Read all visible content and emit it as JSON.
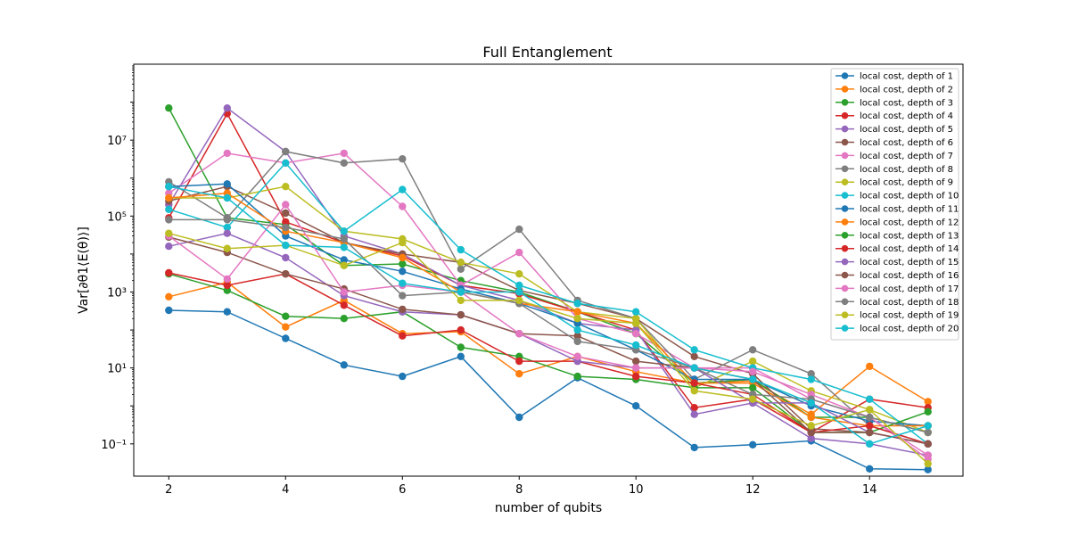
{
  "chart_data": {
    "type": "line",
    "title": "Full Entanglement",
    "xlabel": "number of qubits",
    "ylabel": "Var[∂θ1⟨E(θ)⟩]",
    "yscale": "log",
    "xlim": [
      1.4,
      15.6
    ],
    "ylim_log10": [
      -1.85,
      9.0
    ],
    "x_ticks": [
      2,
      4,
      6,
      8,
      10,
      12,
      14
    ],
    "y_ticks": [
      {
        "exp": -1,
        "label": "10⁻¹"
      },
      {
        "exp": 1,
        "label": "10¹"
      },
      {
        "exp": 3,
        "label": "10³"
      },
      {
        "exp": 5,
        "label": "10⁵"
      },
      {
        "exp": 7,
        "label": "10⁷"
      }
    ],
    "grid": false,
    "legend_position": "top-right",
    "x": [
      2,
      3,
      4,
      5,
      6,
      7,
      8,
      9,
      10,
      11,
      12,
      13,
      14,
      15
    ],
    "series": [
      {
        "name": "local cost, depth of 1",
        "color": "#1f77b4",
        "values": [
          330,
          300,
          60,
          12,
          6,
          20,
          0.5,
          5.5,
          1.0,
          0.08,
          0.095,
          0.12,
          0.022,
          0.021
        ]
      },
      {
        "name": "local cost, depth of 2",
        "color": "#ff7f0e",
        "values": [
          750,
          1800,
          120,
          600,
          80,
          90,
          7,
          20,
          8,
          4,
          4.5,
          0.6,
          11,
          1.3
        ]
      },
      {
        "name": "local cost, depth of 3",
        "color": "#2ca02c",
        "values": [
          70000000,
          90000,
          60000,
          5000,
          5500,
          2000,
          1000,
          300,
          80,
          4,
          5,
          0.5,
          0.5,
          0.2
        ]
      },
      {
        "name": "local cost, depth of 4",
        "color": "#d62728",
        "values": [
          90000,
          50000000,
          70000,
          20000,
          9000,
          1500,
          900,
          300,
          100,
          0.9,
          1.5,
          0.2,
          1.5,
          0.9
        ]
      },
      {
        "name": "local cost, depth of 5",
        "color": "#9467bd",
        "values": [
          200000,
          70000000,
          5000000,
          30000,
          10000,
          1500,
          600,
          150,
          100,
          0.6,
          1.2,
          0.14,
          0.1,
          0.05
        ]
      },
      {
        "name": "local cost, depth of 6",
        "color": "#8c564b",
        "values": [
          250000,
          600000,
          120000,
          20000,
          10000,
          6000,
          1100,
          500,
          200,
          20,
          7,
          0.25,
          0.2,
          0.1
        ]
      },
      {
        "name": "local cost, depth of 7",
        "color": "#e377c2",
        "values": [
          400000,
          4500000,
          2500000,
          4500000,
          180000,
          1500,
          11000,
          200,
          80,
          10,
          10,
          1.5,
          0.5,
          0.04
        ]
      },
      {
        "name": "local cost, depth of 8",
        "color": "#7f7f7f",
        "values": [
          800000,
          90000,
          5000000,
          2500000,
          3200000,
          4000,
          45000,
          600,
          200,
          5,
          30,
          7,
          0.3,
          0.1
        ]
      },
      {
        "name": "local cost, depth of 9",
        "color": "#bcbd22",
        "values": [
          300000,
          300000,
          600000,
          40000,
          25000,
          6000,
          3000,
          300,
          200,
          3,
          15,
          2.5,
          0.8,
          0.2
        ]
      },
      {
        "name": "local cost, depth of 10",
        "color": "#17becf",
        "values": [
          150000,
          50000,
          2500000,
          40000,
          500000,
          13000,
          1500,
          500,
          300,
          30,
          10,
          5,
          1.5,
          0.1
        ]
      },
      {
        "name": "local cost, depth of 11",
        "color": "#1f77b4",
        "values": [
          600000,
          700000,
          30000,
          7000,
          3500,
          1200,
          500,
          150,
          30,
          5,
          5,
          1,
          0.4,
          0.3
        ]
      },
      {
        "name": "local cost, depth of 12",
        "color": "#ff7f0e",
        "values": [
          300000,
          400000,
          40000,
          20000,
          8000,
          1000,
          500,
          300,
          150,
          4,
          4,
          0.5,
          0.3,
          0.3
        ]
      },
      {
        "name": "local cost, depth of 13",
        "color": "#2ca02c",
        "values": [
          3000,
          1100,
          230,
          200,
          300,
          35,
          20,
          6,
          5,
          3,
          3,
          0.2,
          0.2,
          0.7
        ]
      },
      {
        "name": "local cost, depth of 14",
        "color": "#d62728",
        "values": [
          3200,
          1500,
          3000,
          450,
          70,
          100,
          15,
          15,
          6,
          4,
          2,
          0.2,
          0.3,
          0.1
        ]
      },
      {
        "name": "local cost, depth of 15",
        "color": "#9467bd",
        "values": [
          16000,
          35000,
          8000,
          800,
          300,
          250,
          80,
          15,
          10,
          10,
          1.2,
          1.2,
          0.2,
          0.1
        ]
      },
      {
        "name": "local cost, depth of 16",
        "color": "#8c564b",
        "values": [
          28000,
          11000,
          3000,
          1200,
          350,
          250,
          80,
          70,
          15,
          10,
          5,
          0.2,
          0.2,
          0.1
        ]
      },
      {
        "name": "local cost, depth of 17",
        "color": "#e377c2",
        "values": [
          30000,
          2200,
          200000,
          1000,
          1500,
          1000,
          80,
          20,
          10,
          10,
          8,
          2,
          0.5,
          0.05
        ]
      },
      {
        "name": "local cost, depth of 18",
        "color": "#7f7f7f",
        "values": [
          80000,
          80000,
          50000,
          25000,
          800,
          1000,
          500,
          50,
          30,
          10,
          2,
          1.5,
          0.5,
          0.2
        ]
      },
      {
        "name": "local cost, depth of 19",
        "color": "#bcbd22",
        "values": [
          35000,
          14000,
          17000,
          5000,
          20000,
          600,
          600,
          200,
          150,
          2.5,
          1.5,
          0.3,
          0.8,
          0.03
        ]
      },
      {
        "name": "local cost, depth of 20",
        "color": "#17becf",
        "values": [
          600000,
          300000,
          17000,
          15000,
          1700,
          1000,
          1000,
          100,
          40,
          10,
          5,
          1.2,
          0.1,
          0.3
        ]
      }
    ]
  }
}
